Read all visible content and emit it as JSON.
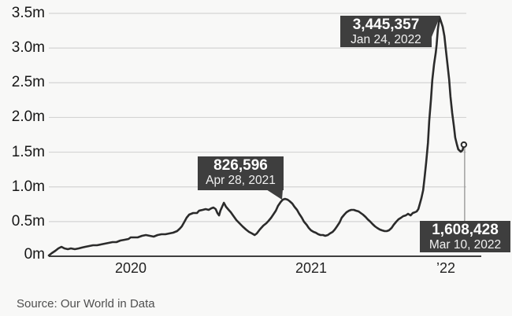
{
  "chart_data": {
    "type": "line",
    "series_color": "#2b2b2b",
    "background_color": "#f8f8f7",
    "gridline_color": "#d4d4d4",
    "axis_color": "#3f3f3f",
    "callout_bg_color": "#3e3e3e",
    "y_axis": {
      "unit": "millions",
      "max": 3.5,
      "tick_values": [
        0,
        0.5,
        1,
        1.5,
        2,
        2.5,
        3,
        3.5
      ],
      "tick_labels": [
        "0m",
        "0.5m",
        "1.0m",
        "1.5m",
        "2.0m",
        "2.5m",
        "3.0m",
        "3.5m"
      ]
    },
    "x_axis": {
      "tick_labels": [
        "2020",
        "2021",
        "’22"
      ],
      "tick_positions": [
        0.189,
        0.605,
        0.916
      ]
    },
    "annotations": [
      {
        "id": "peak-jan-2022",
        "value_label": "3,445,357",
        "date_label": "Jan 24, 2022",
        "value_m": 3.445,
        "position": 0.902
      },
      {
        "id": "peak-apr-2021",
        "value_label": "826,596",
        "date_label": "Apr 28, 2021",
        "value_m": 0.827,
        "position": 0.545
      },
      {
        "id": "latest-mar-2022",
        "value_label": "1,608,428",
        "date_label": "Mar 10, 2022",
        "value_m": 1.608,
        "position": 0.958
      }
    ],
    "source": "Source: Our World in Data",
    "points": [
      [
        0.0,
        0.011
      ],
      [
        0.007,
        0.045
      ],
      [
        0.015,
        0.079
      ],
      [
        0.022,
        0.113
      ],
      [
        0.029,
        0.136
      ],
      [
        0.036,
        0.113
      ],
      [
        0.044,
        0.102
      ],
      [
        0.051,
        0.113
      ],
      [
        0.06,
        0.102
      ],
      [
        0.069,
        0.113
      ],
      [
        0.076,
        0.125
      ],
      [
        0.084,
        0.136
      ],
      [
        0.093,
        0.147
      ],
      [
        0.102,
        0.159
      ],
      [
        0.111,
        0.159
      ],
      [
        0.12,
        0.17
      ],
      [
        0.129,
        0.181
      ],
      [
        0.138,
        0.193
      ],
      [
        0.147,
        0.204
      ],
      [
        0.156,
        0.204
      ],
      [
        0.165,
        0.227
      ],
      [
        0.175,
        0.238
      ],
      [
        0.184,
        0.249
      ],
      [
        0.189,
        0.272
      ],
      [
        0.196,
        0.272
      ],
      [
        0.205,
        0.272
      ],
      [
        0.215,
        0.295
      ],
      [
        0.224,
        0.306
      ],
      [
        0.233,
        0.295
      ],
      [
        0.242,
        0.283
      ],
      [
        0.251,
        0.306
      ],
      [
        0.26,
        0.317
      ],
      [
        0.269,
        0.317
      ],
      [
        0.278,
        0.329
      ],
      [
        0.287,
        0.34
      ],
      [
        0.296,
        0.363
      ],
      [
        0.302,
        0.397
      ],
      [
        0.307,
        0.43
      ],
      [
        0.313,
        0.498
      ],
      [
        0.318,
        0.555
      ],
      [
        0.324,
        0.6
      ],
      [
        0.333,
        0.623
      ],
      [
        0.342,
        0.623
      ],
      [
        0.347,
        0.657
      ],
      [
        0.355,
        0.668
      ],
      [
        0.362,
        0.68
      ],
      [
        0.369,
        0.668
      ],
      [
        0.375,
        0.691
      ],
      [
        0.38,
        0.702
      ],
      [
        0.385,
        0.68
      ],
      [
        0.389,
        0.623
      ],
      [
        0.393,
        0.589
      ],
      [
        0.396,
        0.657
      ],
      [
        0.4,
        0.714
      ],
      [
        0.404,
        0.77
      ],
      [
        0.409,
        0.714
      ],
      [
        0.415,
        0.668
      ],
      [
        0.42,
        0.634
      ],
      [
        0.425,
        0.589
      ],
      [
        0.433,
        0.521
      ],
      [
        0.44,
        0.476
      ],
      [
        0.447,
        0.43
      ],
      [
        0.455,
        0.385
      ],
      [
        0.462,
        0.351
      ],
      [
        0.469,
        0.329
      ],
      [
        0.475,
        0.306
      ],
      [
        0.48,
        0.329
      ],
      [
        0.487,
        0.385
      ],
      [
        0.495,
        0.442
      ],
      [
        0.502,
        0.476
      ],
      [
        0.507,
        0.51
      ],
      [
        0.513,
        0.555
      ],
      [
        0.518,
        0.6
      ],
      [
        0.524,
        0.657
      ],
      [
        0.529,
        0.725
      ],
      [
        0.535,
        0.782
      ],
      [
        0.54,
        0.816
      ],
      [
        0.545,
        0.827
      ],
      [
        0.551,
        0.816
      ],
      [
        0.556,
        0.793
      ],
      [
        0.562,
        0.759
      ],
      [
        0.567,
        0.714
      ],
      [
        0.573,
        0.668
      ],
      [
        0.578,
        0.612
      ],
      [
        0.584,
        0.555
      ],
      [
        0.589,
        0.498
      ],
      [
        0.595,
        0.453
      ],
      [
        0.6,
        0.408
      ],
      [
        0.605,
        0.374
      ],
      [
        0.611,
        0.351
      ],
      [
        0.616,
        0.34
      ],
      [
        0.622,
        0.317
      ],
      [
        0.627,
        0.306
      ],
      [
        0.633,
        0.306
      ],
      [
        0.638,
        0.295
      ],
      [
        0.644,
        0.306
      ],
      [
        0.649,
        0.329
      ],
      [
        0.655,
        0.351
      ],
      [
        0.66,
        0.385
      ],
      [
        0.665,
        0.43
      ],
      [
        0.671,
        0.487
      ],
      [
        0.676,
        0.555
      ],
      [
        0.682,
        0.6
      ],
      [
        0.687,
        0.634
      ],
      [
        0.693,
        0.657
      ],
      [
        0.698,
        0.668
      ],
      [
        0.704,
        0.668
      ],
      [
        0.709,
        0.657
      ],
      [
        0.715,
        0.646
      ],
      [
        0.72,
        0.623
      ],
      [
        0.725,
        0.6
      ],
      [
        0.731,
        0.566
      ],
      [
        0.736,
        0.532
      ],
      [
        0.742,
        0.498
      ],
      [
        0.747,
        0.464
      ],
      [
        0.753,
        0.43
      ],
      [
        0.758,
        0.408
      ],
      [
        0.764,
        0.385
      ],
      [
        0.769,
        0.374
      ],
      [
        0.775,
        0.363
      ],
      [
        0.78,
        0.363
      ],
      [
        0.785,
        0.374
      ],
      [
        0.791,
        0.408
      ],
      [
        0.796,
        0.453
      ],
      [
        0.802,
        0.498
      ],
      [
        0.807,
        0.532
      ],
      [
        0.813,
        0.555
      ],
      [
        0.818,
        0.578
      ],
      [
        0.824,
        0.589
      ],
      [
        0.829,
        0.612
      ],
      [
        0.835,
        0.589
      ],
      [
        0.84,
        0.623
      ],
      [
        0.845,
        0.634
      ],
      [
        0.849,
        0.646
      ],
      [
        0.853,
        0.68
      ],
      [
        0.856,
        0.748
      ],
      [
        0.86,
        0.838
      ],
      [
        0.864,
        0.951
      ],
      [
        0.867,
        1.121
      ],
      [
        0.871,
        1.348
      ],
      [
        0.875,
        1.631
      ],
      [
        0.878,
        1.948
      ],
      [
        0.882,
        2.254
      ],
      [
        0.885,
        2.537
      ],
      [
        0.889,
        2.763
      ],
      [
        0.893,
        2.933
      ],
      [
        0.895,
        3.047
      ],
      [
        0.898,
        3.273
      ],
      [
        0.902,
        3.445
      ],
      [
        0.905,
        3.386
      ],
      [
        0.909,
        3.307
      ],
      [
        0.913,
        3.171
      ],
      [
        0.916,
        3.001
      ],
      [
        0.92,
        2.775
      ],
      [
        0.924,
        2.548
      ],
      [
        0.927,
        2.299
      ],
      [
        0.931,
        2.061
      ],
      [
        0.935,
        1.869
      ],
      [
        0.938,
        1.71
      ],
      [
        0.942,
        1.608
      ],
      [
        0.945,
        1.54
      ],
      [
        0.951,
        1.506
      ],
      [
        0.955,
        1.529
      ],
      [
        0.958,
        1.608
      ]
    ]
  }
}
